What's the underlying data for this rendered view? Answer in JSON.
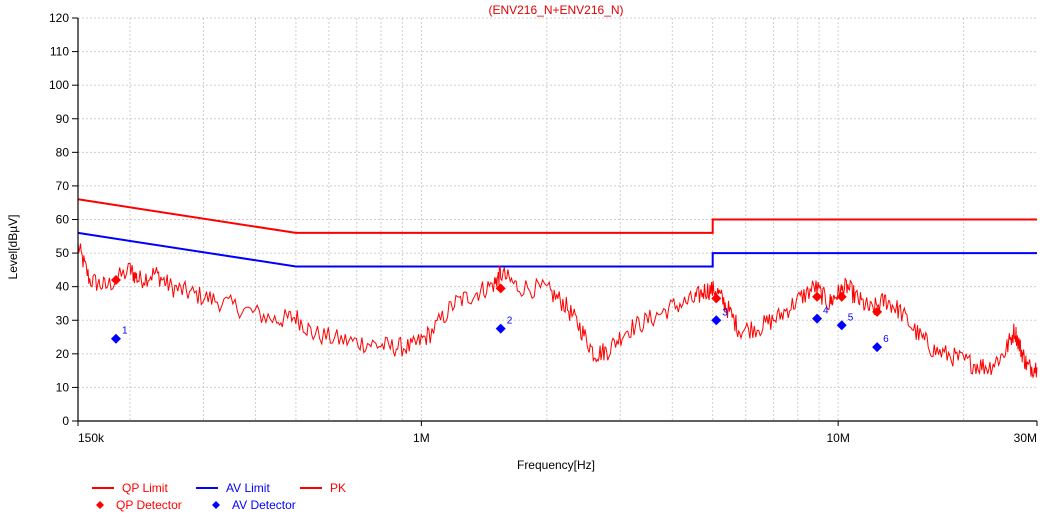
{
  "chart_data": {
    "type": "line",
    "title": "(ENV216_N+ENV216_N)",
    "xlabel": "Frequency[Hz]",
    "ylabel": "Level[dBµV]",
    "x_scale": "log",
    "xlim": [
      150000,
      30000000
    ],
    "ylim": [
      0,
      120
    ],
    "grid": true,
    "x_tick_labels": [
      {
        "value": 150000,
        "label": "150k"
      },
      {
        "value": 1000000,
        "label": "1M"
      },
      {
        "value": 10000000,
        "label": "10M"
      },
      {
        "value": 30000000,
        "label": "30M"
      }
    ],
    "y_ticks": [
      0,
      10,
      20,
      30,
      40,
      50,
      60,
      70,
      80,
      90,
      100,
      110,
      120
    ],
    "colors": {
      "qp": "#ff0000",
      "av": "#0000ff",
      "pk": "#ff0000",
      "title": "#e00000"
    },
    "series": [
      {
        "name": "QP Limit",
        "style": "line",
        "color": "#ff0000",
        "points": [
          [
            150000,
            66
          ],
          [
            500000,
            56
          ],
          [
            5000000,
            56
          ],
          [
            5000000,
            60
          ],
          [
            30000000,
            60
          ]
        ]
      },
      {
        "name": "AV Limit",
        "style": "line",
        "color": "#0000ff",
        "points": [
          [
            150000,
            56
          ],
          [
            500000,
            46
          ],
          [
            5000000,
            46
          ],
          [
            5000000,
            50
          ],
          [
            30000000,
            50
          ]
        ]
      },
      {
        "name": "PK",
        "style": "trace",
        "color": "#ff0000",
        "points": [
          [
            150000,
            52
          ],
          [
            160000,
            42
          ],
          [
            175000,
            40
          ],
          [
            200000,
            45
          ],
          [
            210000,
            42
          ],
          [
            230000,
            44
          ],
          [
            250000,
            40
          ],
          [
            280000,
            38
          ],
          [
            320000,
            36
          ],
          [
            380000,
            33
          ],
          [
            450000,
            30
          ],
          [
            500000,
            31
          ],
          [
            550000,
            26
          ],
          [
            650000,
            24
          ],
          [
            750000,
            23
          ],
          [
            850000,
            22
          ],
          [
            950000,
            22
          ],
          [
            1050000,
            26
          ],
          [
            1200000,
            35
          ],
          [
            1350000,
            38
          ],
          [
            1500000,
            41
          ],
          [
            1550000,
            44
          ],
          [
            1700000,
            40
          ],
          [
            2000000,
            39
          ],
          [
            2200000,
            35
          ],
          [
            2400000,
            28
          ],
          [
            2600000,
            20
          ],
          [
            2800000,
            21
          ],
          [
            3100000,
            27
          ],
          [
            3500000,
            30
          ],
          [
            4000000,
            34
          ],
          [
            4500000,
            36
          ],
          [
            4800000,
            39
          ],
          [
            5100000,
            39
          ],
          [
            5400000,
            34
          ],
          [
            5800000,
            27
          ],
          [
            6500000,
            28
          ],
          [
            7200000,
            31
          ],
          [
            8000000,
            36
          ],
          [
            8800000,
            40
          ],
          [
            9500000,
            35
          ],
          [
            10000000,
            38
          ],
          [
            10500000,
            40
          ],
          [
            11200000,
            36
          ],
          [
            12000000,
            33
          ],
          [
            13000000,
            36
          ],
          [
            14000000,
            33
          ],
          [
            15500000,
            26
          ],
          [
            17000000,
            21
          ],
          [
            19000000,
            19
          ],
          [
            21000000,
            17
          ],
          [
            23000000,
            16
          ],
          [
            25000000,
            20
          ],
          [
            26500000,
            27
          ],
          [
            27500000,
            21
          ],
          [
            28500000,
            16
          ],
          [
            30000000,
            16
          ]
        ]
      },
      {
        "name": "QP Detector",
        "style": "marker",
        "color": "#ff0000",
        "points": [
          [
            185000,
            42
          ],
          [
            1550000,
            39.5
          ],
          [
            5100000,
            36.5
          ],
          [
            8900000,
            37
          ],
          [
            10200000,
            37
          ],
          [
            12400000,
            32.5
          ]
        ]
      },
      {
        "name": "AV Detector",
        "style": "marker",
        "color": "#0000ff",
        "points": [
          [
            185000,
            24.5
          ],
          [
            1550000,
            27.5
          ],
          [
            5100000,
            30
          ],
          [
            8900000,
            30.5
          ],
          [
            10200000,
            28.5
          ],
          [
            12400000,
            22
          ]
        ]
      }
    ],
    "marker_labels": [
      "1",
      "2",
      "3",
      "4",
      "5",
      "6"
    ],
    "legend": {
      "placement": "bottom-left",
      "entries": [
        {
          "label": "QP Limit",
          "kind": "line",
          "color": "#ff0000"
        },
        {
          "label": "AV Limit",
          "kind": "line",
          "color": "#0000ff"
        },
        {
          "label": "PK",
          "kind": "line",
          "color": "#ff0000"
        },
        {
          "label": "QP Detector",
          "kind": "diamond",
          "color": "#ff0000"
        },
        {
          "label": "AV Detector",
          "kind": "diamond",
          "color": "#0000ff"
        }
      ]
    }
  }
}
